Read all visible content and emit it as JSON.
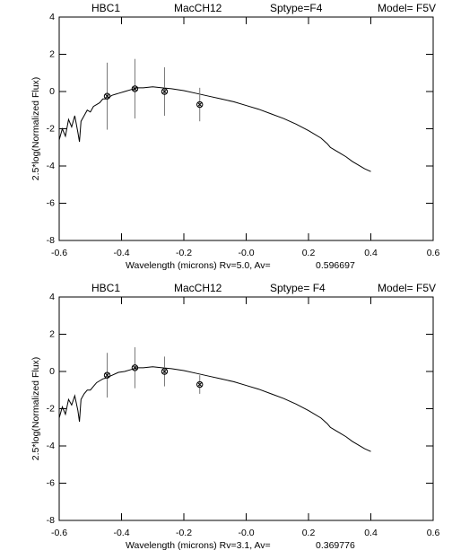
{
  "chart_data": [
    {
      "type": "line",
      "title_parts": [
        "HBC1",
        "MacCH12",
        "Sptype=F4",
        "Model= F5V"
      ],
      "xlabel": "Wavelength (microns) Rv=5.0, Av=",
      "av_value": "0.596697",
      "ylabel": "2.5*log(Normalized Flux)",
      "xlim": [
        -0.6,
        0.6
      ],
      "xticks": [
        -0.6,
        -0.4,
        -0.2,
        {
          "value": 0,
          "label": "-0.0"
        },
        0.2,
        0.4,
        0.6
      ],
      "ylim": [
        -8,
        4
      ],
      "yticks": [
        -8,
        -6,
        -4,
        -2,
        0,
        2,
        4
      ],
      "series": [
        {
          "color": "#000000",
          "x": [
            -0.6,
            -0.59,
            -0.58,
            -0.57,
            -0.56,
            -0.55,
            -0.54,
            -0.535,
            -0.53,
            -0.52,
            -0.51,
            -0.5,
            -0.49,
            -0.48,
            -0.47,
            -0.46,
            -0.45,
            -0.43,
            -0.41,
            -0.39,
            -0.37,
            -0.35,
            -0.33,
            -0.3,
            -0.27,
            -0.24,
            -0.2,
            -0.16,
            -0.12,
            -0.08,
            -0.04,
            0,
            0.04,
            0.08,
            0.12,
            0.16,
            0.2,
            0.24,
            0.26,
            0.27,
            0.28,
            0.29,
            0.3,
            0.32,
            0.34,
            0.36,
            0.38,
            0.4
          ],
          "values": [
            -2.6,
            -2.0,
            -2.4,
            -1.5,
            -1.9,
            -1.3,
            -2.2,
            -2.7,
            -1.6,
            -1.3,
            -1.0,
            -1.1,
            -0.8,
            -0.7,
            -0.6,
            -0.4,
            -0.4,
            -0.2,
            -0.1,
            0.0,
            0.1,
            0.2,
            0.2,
            0.25,
            0.2,
            0.15,
            0.05,
            -0.1,
            -0.25,
            -0.4,
            -0.55,
            -0.75,
            -0.95,
            -1.2,
            -1.45,
            -1.75,
            -2.1,
            -2.5,
            -2.8,
            -3.0,
            -3.1,
            -3.2,
            -3.3,
            -3.5,
            -3.75,
            -3.95,
            -4.15,
            -4.3
          ]
        }
      ],
      "photometry": {
        "x": [
          -0.446,
          -0.357,
          -0.262,
          -0.149
        ],
        "values": [
          -0.25,
          0.15,
          0.0,
          -0.7
        ],
        "errors": [
          1.8,
          1.6,
          1.3,
          0.9
        ]
      }
    },
    {
      "type": "line",
      "title_parts": [
        "HBC1",
        "MacCH12",
        "Sptype= F4",
        "Model= F5V"
      ],
      "xlabel": "Wavelength (microns) Rv=3.1,  Av=",
      "av_value": "0.369776",
      "ylabel": "2.5*log(Normalized Flux)",
      "xlim": [
        -0.6,
        0.6
      ],
      "xticks": [
        -0.6,
        -0.4,
        -0.2,
        {
          "value": 0,
          "label": "-0.0"
        },
        0.2,
        0.4,
        0.6
      ],
      "ylim": [
        -8,
        4
      ],
      "yticks": [
        -8,
        -6,
        -4,
        -2,
        0,
        2,
        4
      ],
      "series": [
        {
          "color": "#000000",
          "x": [
            -0.6,
            -0.59,
            -0.58,
            -0.57,
            -0.56,
            -0.55,
            -0.54,
            -0.535,
            -0.53,
            -0.52,
            -0.51,
            -0.5,
            -0.49,
            -0.48,
            -0.47,
            -0.46,
            -0.45,
            -0.43,
            -0.41,
            -0.39,
            -0.37,
            -0.35,
            -0.33,
            -0.3,
            -0.27,
            -0.24,
            -0.2,
            -0.16,
            -0.12,
            -0.08,
            -0.04,
            0,
            0.04,
            0.08,
            0.12,
            0.16,
            0.2,
            0.24,
            0.26,
            0.27,
            0.28,
            0.29,
            0.3,
            0.32,
            0.34,
            0.36,
            0.38,
            0.4
          ],
          "values": [
            -2.5,
            -1.9,
            -2.3,
            -1.5,
            -1.8,
            -1.3,
            -2.1,
            -2.7,
            -1.5,
            -1.2,
            -1.0,
            -1.0,
            -0.8,
            -0.6,
            -0.5,
            -0.4,
            -0.35,
            -0.2,
            -0.05,
            0.0,
            0.1,
            0.2,
            0.2,
            0.25,
            0.2,
            0.15,
            0.05,
            -0.1,
            -0.25,
            -0.4,
            -0.55,
            -0.75,
            -0.95,
            -1.2,
            -1.45,
            -1.75,
            -2.1,
            -2.5,
            -2.8,
            -3.0,
            -3.1,
            -3.2,
            -3.3,
            -3.5,
            -3.75,
            -3.95,
            -4.15,
            -4.3
          ]
        }
      ],
      "photometry": {
        "x": [
          -0.446,
          -0.357,
          -0.262,
          -0.149
        ],
        "values": [
          -0.2,
          0.2,
          0.0,
          -0.7
        ],
        "errors": [
          1.2,
          1.1,
          0.8,
          0.5
        ]
      }
    }
  ]
}
